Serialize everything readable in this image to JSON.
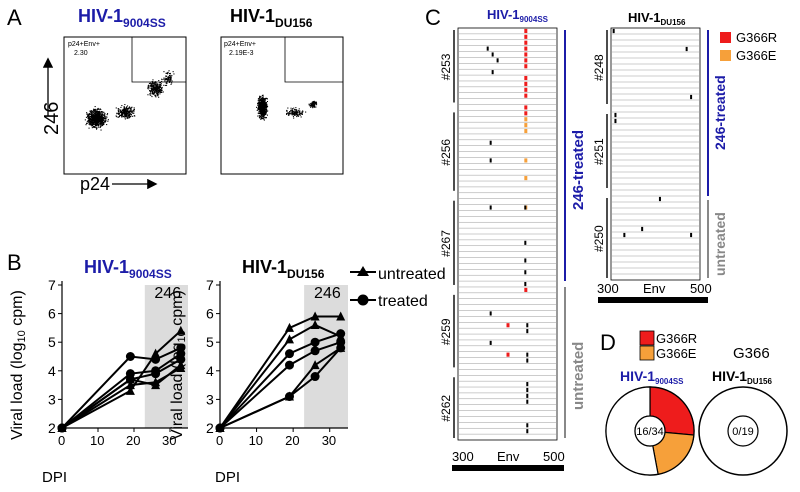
{
  "panels": {
    "a": "A",
    "b": "B",
    "c": "C",
    "d": "D"
  },
  "panel_a": {
    "strain1": {
      "base": "HIV-1",
      "sub": "9004SS"
    },
    "strain2": {
      "base": "HIV-1",
      "sub": "DU156"
    },
    "y_label": "246",
    "x_label": "p24",
    "gate1": {
      "title": "p24+Env+",
      "value": "2.30"
    },
    "gate2": {
      "title": "p24+Env+",
      "value": "2.19E-3"
    }
  },
  "panel_b": {
    "strain1": {
      "base": "HIV-1",
      "sub": "9004SS"
    },
    "strain2": {
      "base": "HIV-1",
      "sub": "DU156"
    },
    "treatment_label": "246",
    "legend": {
      "untreated": "untreated",
      "treated": "treated"
    },
    "x_ticks": [
      "0",
      "10",
      "20",
      "30"
    ],
    "y_ticks": [
      "2",
      "3",
      "4",
      "5",
      "6",
      "7"
    ]
  },
  "panel_c": {
    "strain1": {
      "base": "HIV-1",
      "sub": "9004SS"
    },
    "strain2": {
      "base": "HIV-1",
      "sub": "DU156"
    },
    "legend": [
      {
        "label": "G366R",
        "color": "#ee1c1c"
      },
      {
        "label": "G366E",
        "color": "#f6a03a"
      }
    ],
    "animals_left": [
      "#253",
      "#256",
      "#267",
      "#259",
      "#262"
    ],
    "animals_right": [
      "#248",
      "#251",
      "#250"
    ],
    "group_treated": "246-treated",
    "group_untreated": "untreated",
    "x_start": "300",
    "x_mid": "Env",
    "x_end": "500"
  },
  "panel_d": {
    "legend": [
      {
        "label": "G366R",
        "color": "#ee1c1c"
      },
      {
        "label": "G366E",
        "color": "#f6a03a"
      }
    ],
    "title_right": "G366",
    "strain1": {
      "base": "HIV-1",
      "sub": "9004SS"
    },
    "strain2": {
      "base": "HIV-1",
      "sub": "DU156"
    },
    "pie1_center": "16/34",
    "pie2_center": "0/19"
  },
  "chart_data": [
    {
      "type": "line",
      "panel": "B-left",
      "xlabel": "DPI",
      "ylabel": "Viral load (log10 cpm)",
      "xlim": [
        0,
        35
      ],
      "ylim": [
        2,
        7
      ],
      "shaded_from": 23,
      "series": [
        {
          "group": "untreated",
          "x": [
            0,
            19,
            26,
            33
          ],
          "y": [
            2,
            3.3,
            4.6,
            5.4
          ]
        },
        {
          "group": "untreated",
          "x": [
            0,
            19,
            26,
            33
          ],
          "y": [
            2,
            3.5,
            3.6,
            4.1
          ]
        },
        {
          "group": "untreated",
          "x": [
            0,
            19,
            26,
            33
          ],
          "y": [
            2,
            3.7,
            3.5,
            4.2
          ]
        },
        {
          "group": "treated",
          "x": [
            0,
            19,
            26,
            33
          ],
          "y": [
            2,
            4.5,
            4.4,
            4.8
          ]
        },
        {
          "group": "treated",
          "x": [
            0,
            19,
            26,
            33
          ],
          "y": [
            2,
            3.9,
            4.0,
            4.6
          ]
        },
        {
          "group": "treated",
          "x": [
            0,
            19,
            26,
            33
          ],
          "y": [
            2,
            3.7,
            3.9,
            4.4
          ]
        }
      ]
    },
    {
      "type": "line",
      "panel": "B-right",
      "xlabel": "DPI",
      "ylabel": "Viral load (log10 cpm)",
      "xlim": [
        0,
        35
      ],
      "ylim": [
        2,
        7
      ],
      "shaded_from": 23,
      "series": [
        {
          "group": "untreated",
          "x": [
            0,
            19,
            26,
            33
          ],
          "y": [
            2,
            5.5,
            5.9,
            5.9
          ]
        },
        {
          "group": "untreated",
          "x": [
            0,
            19,
            26,
            33
          ],
          "y": [
            2,
            5.1,
            5.6,
            5.2
          ]
        },
        {
          "group": "untreated",
          "x": [
            0,
            19,
            26,
            33
          ],
          "y": [
            2,
            3.1,
            4.2,
            4.8
          ]
        },
        {
          "group": "treated",
          "x": [
            0,
            19,
            26,
            33
          ],
          "y": [
            2,
            4.6,
            5.0,
            5.3
          ]
        },
        {
          "group": "treated",
          "x": [
            0,
            19,
            26,
            33
          ],
          "y": [
            2,
            4.2,
            4.7,
            5.0
          ]
        },
        {
          "group": "treated",
          "x": [
            0,
            19,
            26,
            33
          ],
          "y": [
            2,
            3.1,
            3.8,
            4.8
          ]
        }
      ]
    },
    {
      "type": "pie",
      "panel": "D-left",
      "total": 34,
      "slices": [
        {
          "label": "G366R",
          "value": 9,
          "color": "#ee1c1c"
        },
        {
          "label": "G366E",
          "value": 7,
          "color": "#f6a03a"
        },
        {
          "label": "wild-type",
          "value": 18,
          "color": "#ffffff"
        }
      ]
    },
    {
      "type": "pie",
      "panel": "D-right",
      "total": 19,
      "slices": [
        {
          "label": "wild-type",
          "value": 19,
          "color": "#ffffff"
        }
      ]
    }
  ],
  "colors": {
    "blue": "#1c1ca8",
    "grey_bar": "#888888",
    "shade": "#dcdcdc"
  }
}
